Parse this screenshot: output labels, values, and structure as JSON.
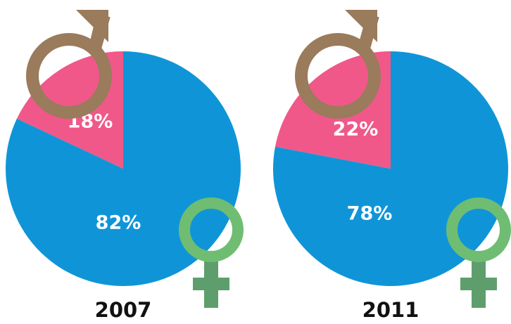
{
  "chart_data": [
    {
      "type": "pie",
      "title": "2007",
      "values": [
        18,
        82
      ],
      "value_labels": [
        "18%",
        "82%"
      ],
      "colors": [
        "#f0588a",
        "#0f95d7"
      ]
    },
    {
      "type": "pie",
      "title": "2011",
      "values": [
        22,
        78
      ],
      "value_labels": [
        "22%",
        "78%"
      ],
      "colors": [
        "#f0588a",
        "#0f95d7"
      ]
    }
  ]
}
